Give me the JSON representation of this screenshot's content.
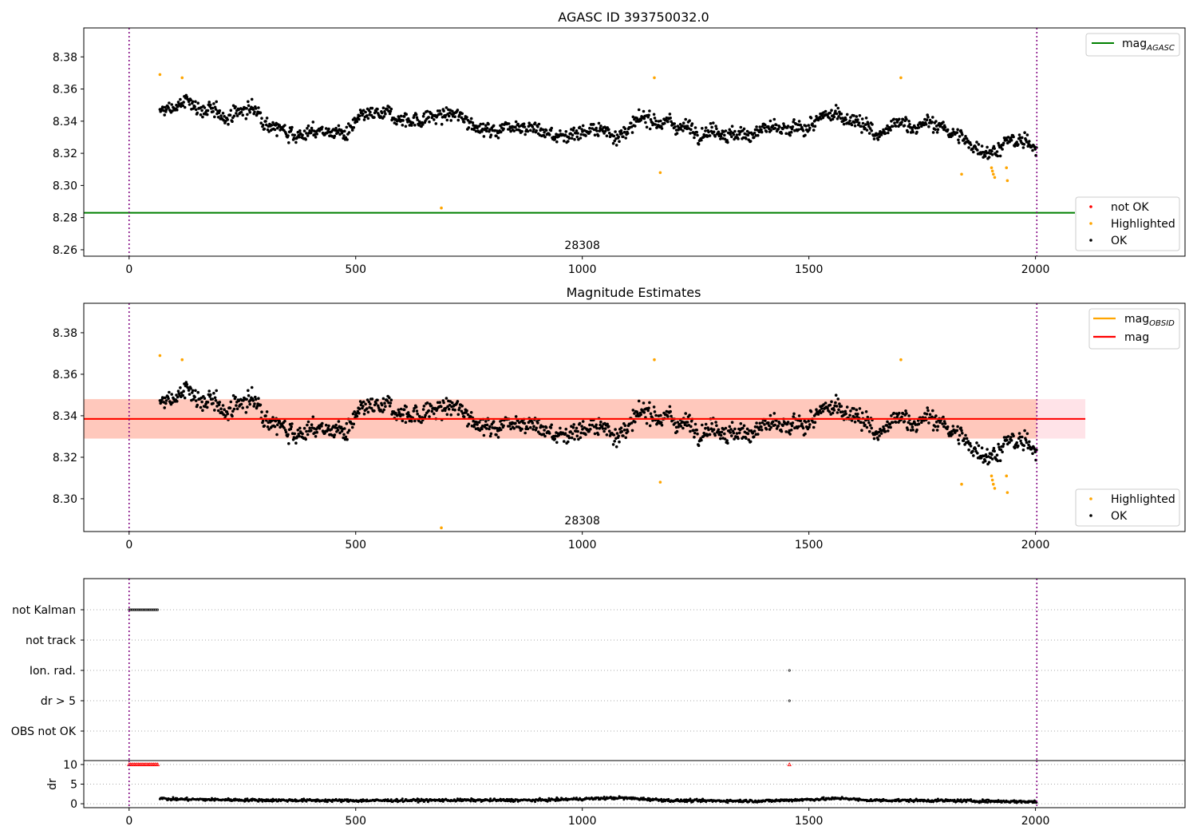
{
  "chart_data": [
    {
      "type": "scatter",
      "title": "AGASC ID 393750032.0",
      "xlim": [
        -100,
        2330
      ],
      "ylim": [
        8.256,
        8.398
      ],
      "x_ticks": [
        0,
        500,
        1000,
        1500,
        2000
      ],
      "y_ticks": [
        8.26,
        8.28,
        8.3,
        8.32,
        8.34,
        8.36,
        8.38
      ],
      "obsid_label": "28308",
      "obs_boundaries": [
        0,
        2003
      ],
      "reference_lines": [
        {
          "name": "mag_AGASC",
          "value": 8.283,
          "color": "#008000"
        }
      ],
      "series": [
        {
          "name": "not OK",
          "color": "#ff0000",
          "points": []
        },
        {
          "name": "Highlighted",
          "color": "#ffa500",
          "points": [
            [
              68,
              8.369
            ],
            [
              117,
              8.367
            ],
            [
              689,
              8.286
            ],
            [
              1159,
              8.367
            ],
            [
              1172,
              8.308
            ],
            [
              1703,
              8.367
            ],
            [
              1837,
              8.307
            ],
            [
              1903,
              8.311
            ],
            [
              1905,
              8.309
            ],
            [
              1907,
              8.307
            ],
            [
              1910,
              8.305
            ],
            [
              1936,
              8.311
            ],
            [
              1938,
              8.303
            ]
          ]
        },
        {
          "name": "OK",
          "color": "#000000",
          "trend": [
            [
              68,
              8.345
            ],
            [
              130,
              8.352
            ],
            [
              200,
              8.343
            ],
            [
              270,
              8.348
            ],
            [
              330,
              8.336
            ],
            [
              380,
              8.332
            ],
            [
              430,
              8.334
            ],
            [
              480,
              8.332
            ],
            [
              520,
              8.342
            ],
            [
              580,
              8.343
            ],
            [
              640,
              8.341
            ],
            [
              700,
              8.344
            ],
            [
              760,
              8.34
            ],
            [
              800,
              8.333
            ],
            [
              850,
              8.34
            ],
            [
              900,
              8.335
            ],
            [
              950,
              8.33
            ],
            [
              1000,
              8.335
            ],
            [
              1060,
              8.333
            ],
            [
              1100,
              8.333
            ],
            [
              1150,
              8.343
            ],
            [
              1200,
              8.338
            ],
            [
              1250,
              8.335
            ],
            [
              1300,
              8.336
            ],
            [
              1350,
              8.33
            ],
            [
              1400,
              8.336
            ],
            [
              1450,
              8.332
            ],
            [
              1500,
              8.337
            ],
            [
              1560,
              8.344
            ],
            [
              1610,
              8.342
            ],
            [
              1650,
              8.33
            ],
            [
              1700,
              8.338
            ],
            [
              1760,
              8.338
            ],
            [
              1800,
              8.336
            ],
            [
              1850,
              8.326
            ],
            [
              1900,
              8.322
            ],
            [
              1950,
              8.327
            ],
            [
              2003,
              8.325
            ]
          ]
        }
      ],
      "legends": [
        [
          "mag_AGASC"
        ],
        [
          "not OK",
          "Highlighted",
          "OK"
        ]
      ]
    },
    {
      "type": "scatter",
      "title": "Magnitude Estimates",
      "xlim": [
        -100,
        2330
      ],
      "ylim": [
        8.2842,
        8.3942
      ],
      "x_ticks": [
        0,
        500,
        1000,
        1500,
        2000
      ],
      "y_ticks": [
        8.3,
        8.32,
        8.34,
        8.36,
        8.38
      ],
      "obsid_label": "28308",
      "obs_boundaries": [
        0,
        2003
      ],
      "bands": [
        {
          "from": 8.329,
          "to": 8.348,
          "x_range": [
            -100,
            2110
          ],
          "color": "#ffc0cb"
        },
        {
          "from": 8.329,
          "to": 8.348,
          "x_range": [
            -100,
            2003
          ],
          "color": "#ffa07a"
        }
      ],
      "reference_lines": [
        {
          "name": "mag_OBSID",
          "value": 8.3385,
          "color": "#ffa500",
          "x_range": [
            -100,
            2003
          ]
        },
        {
          "name": "mag",
          "value": 8.3385,
          "color": "#ff0000",
          "x_range": [
            -100,
            2110
          ]
        }
      ],
      "series": [
        {
          "name": "Highlighted",
          "color": "#ffa500",
          "same_as_panel": 0
        },
        {
          "name": "OK",
          "color": "#000000",
          "same_as_panel": 0
        }
      ],
      "legends": [
        [
          "mag_OBSID",
          "mag"
        ],
        [
          "Highlighted",
          "OK"
        ]
      ]
    },
    {
      "type": "scatter",
      "title": "",
      "xlim": [
        -100,
        2330
      ],
      "x_ticks": [
        0,
        500,
        1000,
        1500,
        2000
      ],
      "flag_rows": [
        "not Kalman",
        "not track",
        "Ion. rad.",
        "dr > 5",
        "OBS not OK"
      ],
      "flags": [
        {
          "row": "not Kalman",
          "x_range": [
            0,
            65
          ]
        },
        {
          "row": "Ion. rad.",
          "x": [
            1457
          ]
        },
        {
          "row": "dr > 5",
          "x": [
            1457
          ]
        }
      ],
      "dr": {
        "ylabel": "dr",
        "y_ticks": [
          0,
          5,
          10
        ],
        "ylim": [
          -1,
          11
        ],
        "clipped_value": 10,
        "clipped_x": [
          [
            0,
            65
          ],
          [
            1457,
            1457
          ]
        ],
        "trend": [
          [
            68,
            1.5
          ],
          [
            80,
            1.2
          ],
          [
            150,
            1.1
          ],
          [
            300,
            0.9
          ],
          [
            500,
            0.8
          ],
          [
            700,
            0.9
          ],
          [
            900,
            0.9
          ],
          [
            1080,
            1.5
          ],
          [
            1120,
            1.3
          ],
          [
            1200,
            0.8
          ],
          [
            1400,
            0.7
          ],
          [
            1580,
            1.4
          ],
          [
            1620,
            0.9
          ],
          [
            1800,
            0.8
          ],
          [
            2003,
            0.5
          ]
        ]
      }
    }
  ]
}
